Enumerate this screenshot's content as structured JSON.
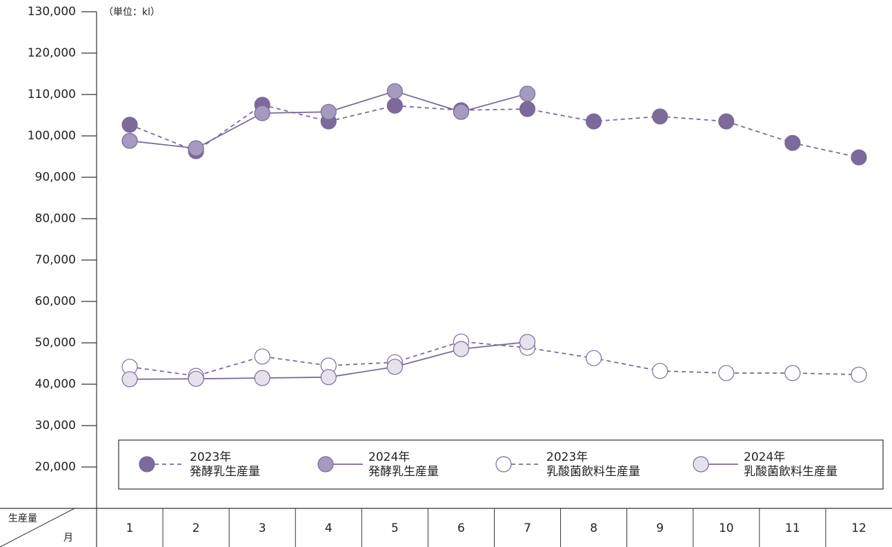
{
  "chart_data": {
    "type": "line",
    "unit_label": "（単位：kl）",
    "categories": [
      "1",
      "2",
      "3",
      "4",
      "5",
      "6",
      "7",
      "8",
      "9",
      "10",
      "11",
      "12"
    ],
    "corner_labels": [
      "生産量",
      "月"
    ],
    "ylim": [
      10000,
      130000
    ],
    "yticks": [
      {
        "value": 20000,
        "label": "20,000"
      },
      {
        "value": 30000,
        "label": "30,000"
      },
      {
        "value": 40000,
        "label": "40,000"
      },
      {
        "value": 50000,
        "label": "50,000"
      },
      {
        "value": 60000,
        "label": "60,000"
      },
      {
        "value": 70000,
        "label": "70,000"
      },
      {
        "value": 80000,
        "label": "80,000"
      },
      {
        "value": 90000,
        "label": "90,000"
      },
      {
        "value": 100000,
        "label": "100,000"
      },
      {
        "value": 110000,
        "label": "110,000"
      },
      {
        "value": 120000,
        "label": "120,000"
      },
      {
        "value": 130000,
        "label": "130,000"
      }
    ],
    "series": [
      {
        "name": "2023年\n発酵乳生産量",
        "color": "#7b6a9a",
        "marker_fill": "#7b6a9a",
        "dashed": true,
        "values": [
          102700,
          96300,
          107500,
          103500,
          107300,
          106200,
          106500,
          103500,
          104700,
          103500,
          98300,
          94800
        ]
      },
      {
        "name": "2024年\n発酵乳生産量",
        "color": "#7b6a9a",
        "marker_fill": "#a59abf",
        "dashed": false,
        "values": [
          98800,
          97000,
          105500,
          105800,
          110800,
          105800,
          110200,
          null,
          null,
          null,
          null,
          null
        ]
      },
      {
        "name": "2023年\n乳酸菌飲料生産量",
        "color": "#7b6a9a",
        "marker_fill": "#ffffff",
        "dashed": true,
        "values": [
          44200,
          42000,
          46700,
          44500,
          45300,
          50300,
          48800,
          46300,
          43200,
          42700,
          42700,
          42300
        ]
      },
      {
        "name": "2024年\n乳酸菌飲料生産量",
        "color": "#7b6a9a",
        "marker_fill": "#e5e2ed",
        "dashed": false,
        "values": [
          41200,
          41300,
          41500,
          41700,
          44200,
          48500,
          50200,
          null,
          null,
          null,
          null,
          null
        ]
      }
    ]
  }
}
